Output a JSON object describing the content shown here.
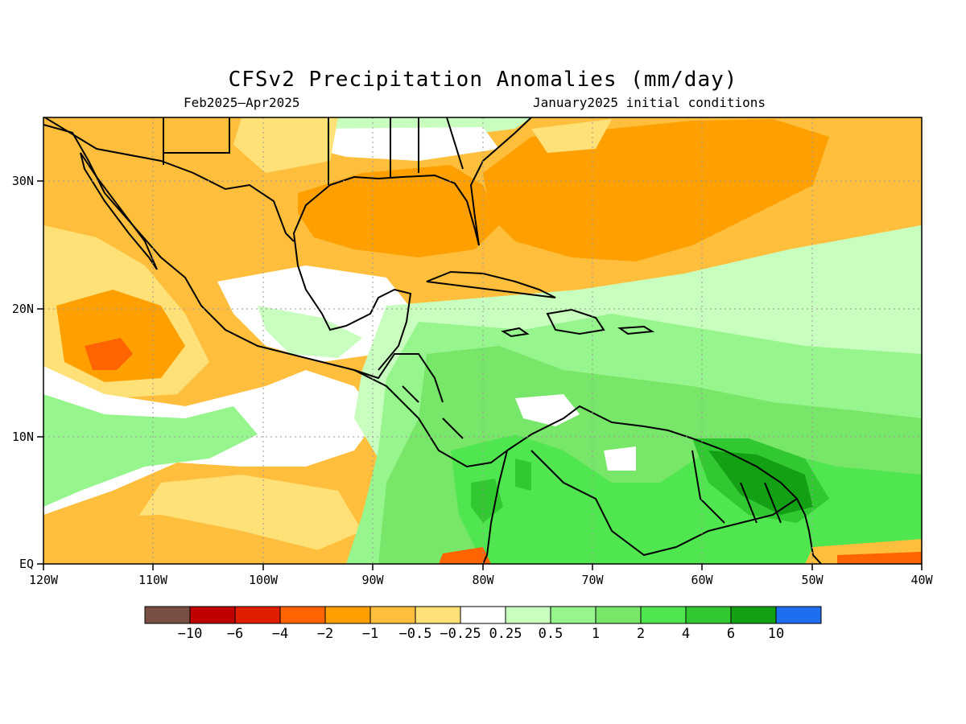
{
  "title": "CFSv2 Precipitation Anomalies (mm/day)",
  "subtitle_left": "Feb2025–Apr2025",
  "subtitle_right": "January2025 initial conditions",
  "lon_ticks": [
    "120W",
    "110W",
    "100W",
    "90W",
    "80W",
    "70W",
    "60W",
    "50W",
    "40W"
  ],
  "lat_ticks": [
    "30N",
    "20N",
    "10N",
    "EQ"
  ],
  "colorbar": {
    "colors": [
      "#7a4f43",
      "#c00000",
      "#e01e00",
      "#ff6400",
      "#ffa000",
      "#ffbe3c",
      "#ffe178",
      "#ffffff",
      "#c8ffbe",
      "#96f58c",
      "#78e668",
      "#50e650",
      "#32c832",
      "#14a014",
      "#1e6ef0"
    ],
    "labels": [
      "−10",
      "−6",
      "−4",
      "−2",
      "−1",
      "−0.5",
      "−0.25",
      "0.25",
      "0.5",
      "1",
      "2",
      "4",
      "6",
      "10"
    ]
  },
  "map": {
    "extent": {
      "lon": [
        -120,
        -40
      ],
      "lat": [
        0,
        35
      ]
    },
    "grid_lines": "dotted",
    "colors": {
      "dry_mod": "#ffbe3c",
      "dry_strong": "#ffa000",
      "dry_weak": "#ffe178",
      "dry_severe": "#ff6400",
      "neutral": "#ffffff",
      "wet_weak": "#c8ffbe",
      "wet_light": "#96f58c",
      "wet_mod": "#78e668",
      "wet_strong": "#50e650",
      "wet_heavy": "#32c832",
      "wet_extreme": "#14a014"
    }
  }
}
